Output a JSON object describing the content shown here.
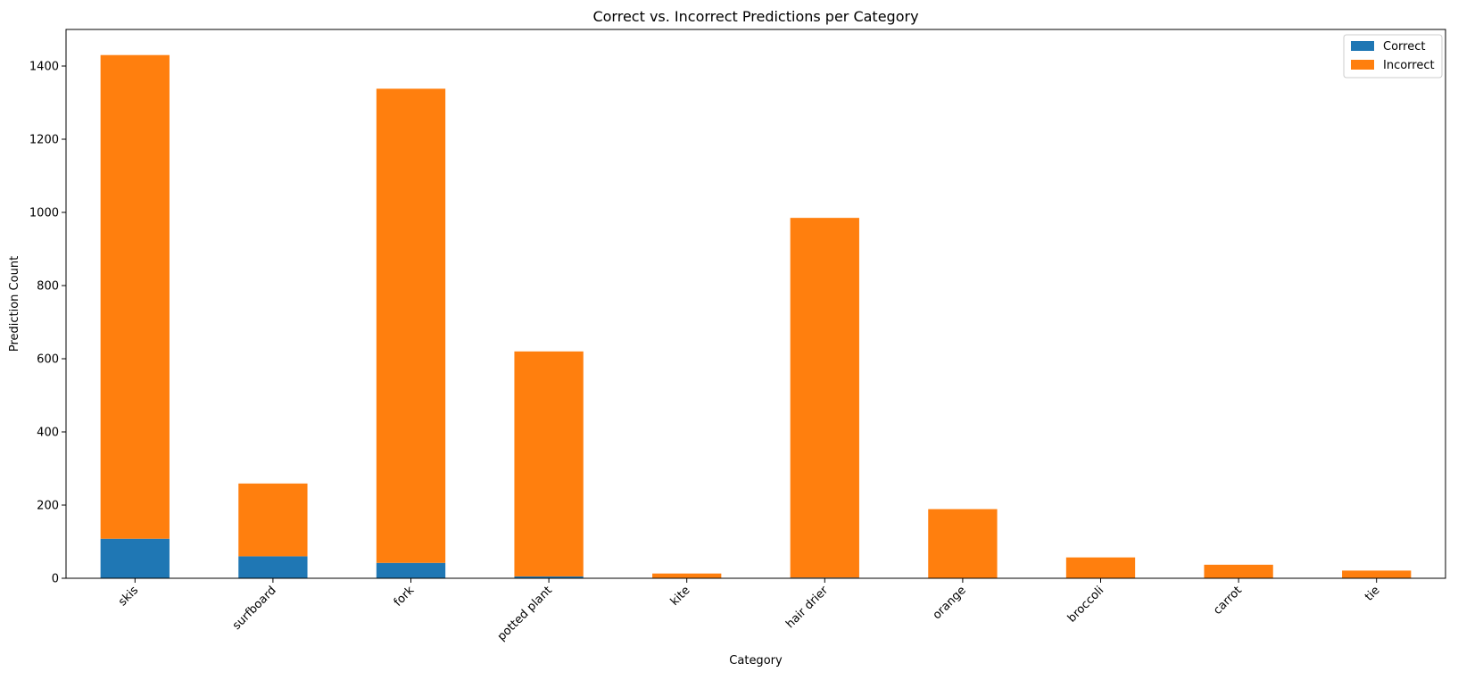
{
  "chart_data": {
    "type": "bar",
    "stacked": true,
    "title": "Correct vs. Incorrect Predictions per Category",
    "xlabel": "Category",
    "ylabel": "Prediction Count",
    "categories": [
      "skis",
      "surfboard",
      "fork",
      "potted plant",
      "kite",
      "hair drier",
      "orange",
      "broccoli",
      "carrot",
      "tie"
    ],
    "series": [
      {
        "name": "Correct",
        "color": "#1f77b4",
        "values": [
          108,
          60,
          42,
          5,
          0,
          2,
          0,
          0,
          0,
          0
        ]
      },
      {
        "name": "Incorrect",
        "color": "#ff7f0e",
        "values": [
          1322,
          199,
          1296,
          615,
          13,
          983,
          189,
          57,
          37,
          21
        ]
      }
    ],
    "ylim": [
      0,
      1500
    ],
    "yticks": [
      0,
      200,
      400,
      600,
      800,
      1000,
      1200,
      1400
    ],
    "grid": false,
    "legend_position": "top-right"
  }
}
